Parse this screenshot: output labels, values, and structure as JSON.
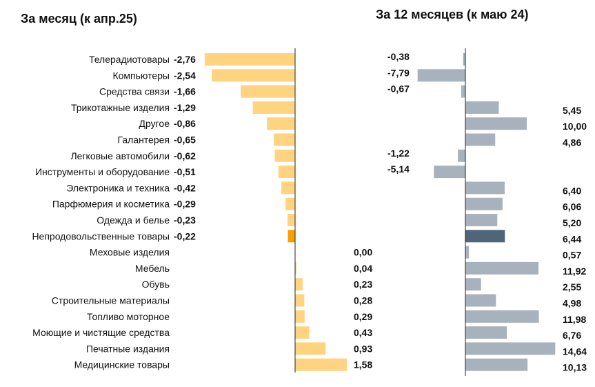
{
  "chart_data": [
    {
      "type": "bar",
      "orientation": "horizontal",
      "title": "За месяц (к апр.25)",
      "categories": [
        "Телерадиотовары",
        "Компьютеры",
        "Средства связи",
        "Трикотажные изделия",
        "Другое",
        "Галантерея",
        "Легковые автомобили",
        "Инструменты и оборудование",
        "Электроника и техника",
        "Парфюмерия и косметика",
        "Одежда и белье",
        "Непродовольственные товары",
        "Меховые изделия",
        "Мебель",
        "Обувь",
        "Строительные материалы",
        "Топливо моторное",
        "Моющие и чистящие средства",
        "Печатные издания",
        "Медицинские товары"
      ],
      "values": [
        -2.76,
        -2.54,
        -1.66,
        -1.29,
        -0.86,
        -0.65,
        -0.62,
        -0.51,
        -0.42,
        -0.29,
        -0.23,
        -0.22,
        0.0,
        0.04,
        0.23,
        0.28,
        0.29,
        0.43,
        0.93,
        1.58
      ],
      "labels": [
        "-2,76",
        "-2,54",
        "-1,66",
        "-1,29",
        "-0,86",
        "-0,65",
        "-0,62",
        "-0,51",
        "-0,42",
        "-0,29",
        "-0,23",
        "-0,22",
        "0,00",
        "0,04",
        "0,23",
        "0,28",
        "0,29",
        "0,43",
        "0,93",
        "1,58"
      ],
      "highlight_index": 11,
      "colors": {
        "bar": "#FFD37F",
        "highlight": "#F5A000"
      }
    },
    {
      "type": "bar",
      "orientation": "horizontal",
      "title": "За 12 месяцев (к маю 24)",
      "values": [
        -0.38,
        -7.79,
        -0.67,
        5.45,
        10.0,
        4.86,
        -1.22,
        -5.14,
        6.4,
        6.06,
        5.2,
        6.44,
        0.57,
        11.92,
        2.55,
        4.98,
        11.98,
        6.76,
        14.64,
        10.13
      ],
      "labels": [
        "-0,38",
        "-7,79",
        "-0,67",
        "5,45",
        "10,00",
        "4,86",
        "-1,22",
        "-5,14",
        "6,40",
        "6,06",
        "5,20",
        "6,44",
        "0,57",
        "11,92",
        "2,55",
        "4,98",
        "11,98",
        "6,76",
        "14,64",
        "10,13"
      ],
      "highlight_index": 11,
      "colors": {
        "bar": "#A7B2BC",
        "highlight": "#4F6679"
      }
    }
  ]
}
